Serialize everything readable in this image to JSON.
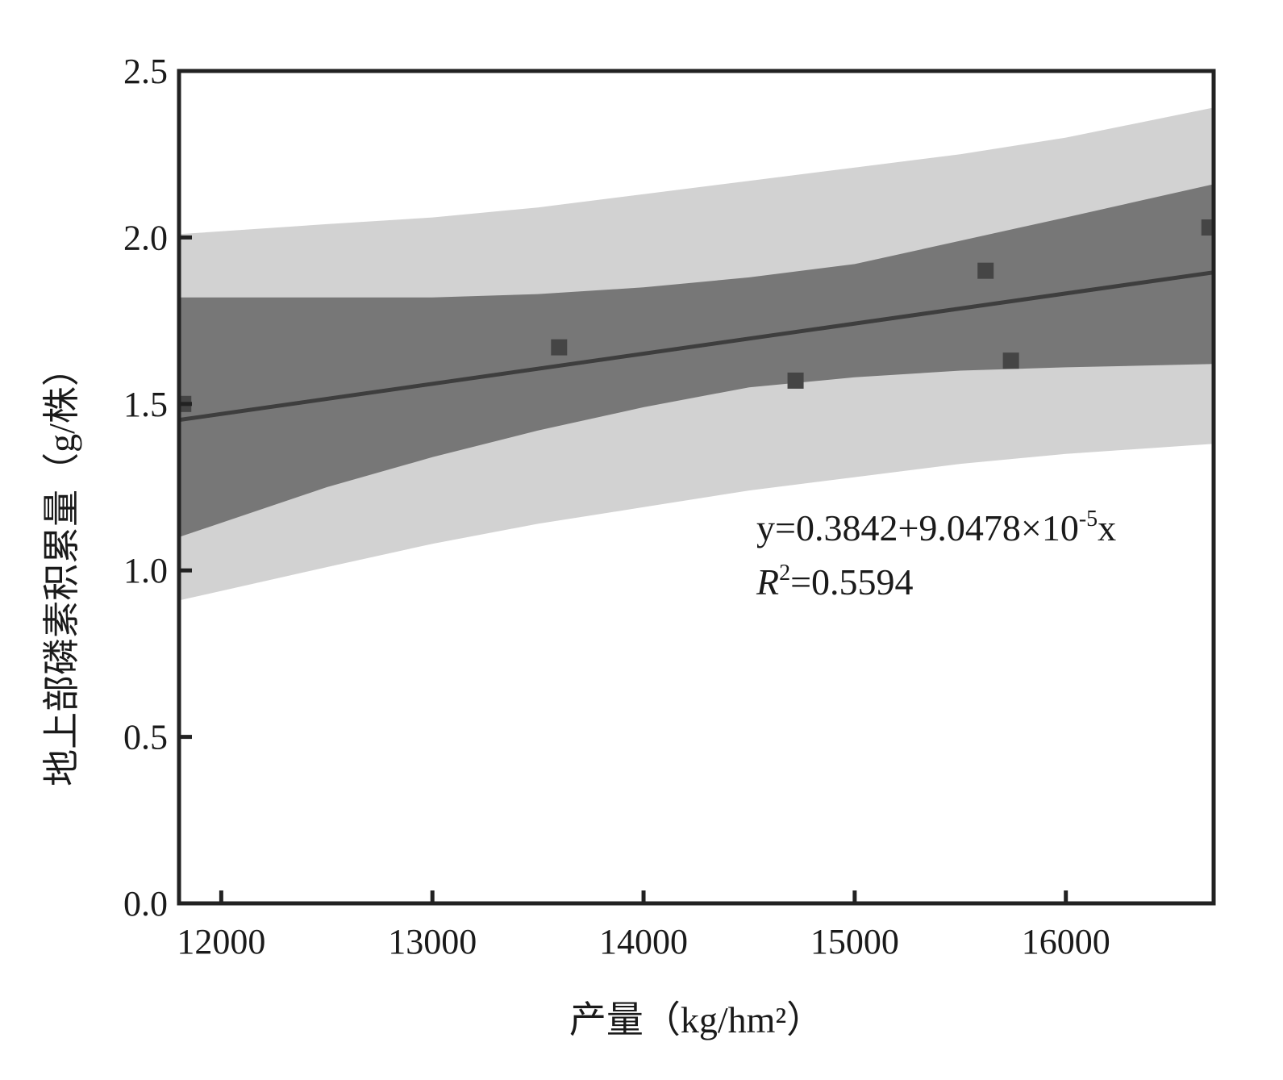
{
  "chart_data": {
    "type": "scatter",
    "xlabel": "产量（kg/hm²）",
    "ylabel": "地上部磷素积累量（g/株）",
    "xlim": [
      11800,
      16700
    ],
    "ylim": [
      0,
      2.5
    ],
    "x_ticks": [
      12000,
      13000,
      14000,
      15000,
      16000
    ],
    "y_ticks": [
      0.0,
      0.5,
      1.0,
      1.5,
      2.0,
      2.5
    ],
    "x_tick_labels": [
      "12000",
      "13000",
      "14000",
      "15000",
      "16000"
    ],
    "y_tick_labels": [
      "0.0",
      "0.5",
      "1.0",
      "1.5",
      "2.0",
      "2.5"
    ],
    "grid": false,
    "series": [
      {
        "points": [
          {
            "x": 11820,
            "y": 1.5
          },
          {
            "x": 13600,
            "y": 1.67
          },
          {
            "x": 14720,
            "y": 1.57
          },
          {
            "x": 15620,
            "y": 1.9
          },
          {
            "x": 15740,
            "y": 1.63
          },
          {
            "x": 16680,
            "y": 2.03
          }
        ]
      }
    ],
    "fit": {
      "intercept": 0.3842,
      "slope": 9.0478e-05
    },
    "confidence_band": {
      "x": [
        11800,
        12500,
        13000,
        13500,
        14000,
        14500,
        15000,
        15500,
        16000,
        16700
      ],
      "lower": [
        1.1,
        1.25,
        1.34,
        1.42,
        1.49,
        1.55,
        1.58,
        1.6,
        1.61,
        1.62
      ],
      "upper": [
        1.82,
        1.82,
        1.82,
        1.83,
        1.85,
        1.88,
        1.92,
        1.99,
        2.06,
        2.16
      ]
    },
    "prediction_band": {
      "x": [
        11800,
        12500,
        13000,
        13500,
        14000,
        14500,
        15000,
        15500,
        16000,
        16700
      ],
      "lower": [
        0.91,
        1.01,
        1.08,
        1.14,
        1.19,
        1.24,
        1.28,
        1.32,
        1.35,
        1.38
      ],
      "upper": [
        2.01,
        2.04,
        2.06,
        2.09,
        2.13,
        2.17,
        2.21,
        2.25,
        2.3,
        2.39
      ]
    },
    "annotation": {
      "equation_prefix": "y=0.3842+9.0478×10",
      "equation_exp": "-5",
      "equation_suffix": "x",
      "r2_symbol": "R",
      "r2_exp": "2",
      "r2_value": "=0.5594"
    },
    "colors": {
      "prediction_band": "#d2d2d2",
      "confidence_band": "#777777",
      "fit_line": "#3e3e3e",
      "points": "#454545",
      "axis": "#222222"
    }
  }
}
